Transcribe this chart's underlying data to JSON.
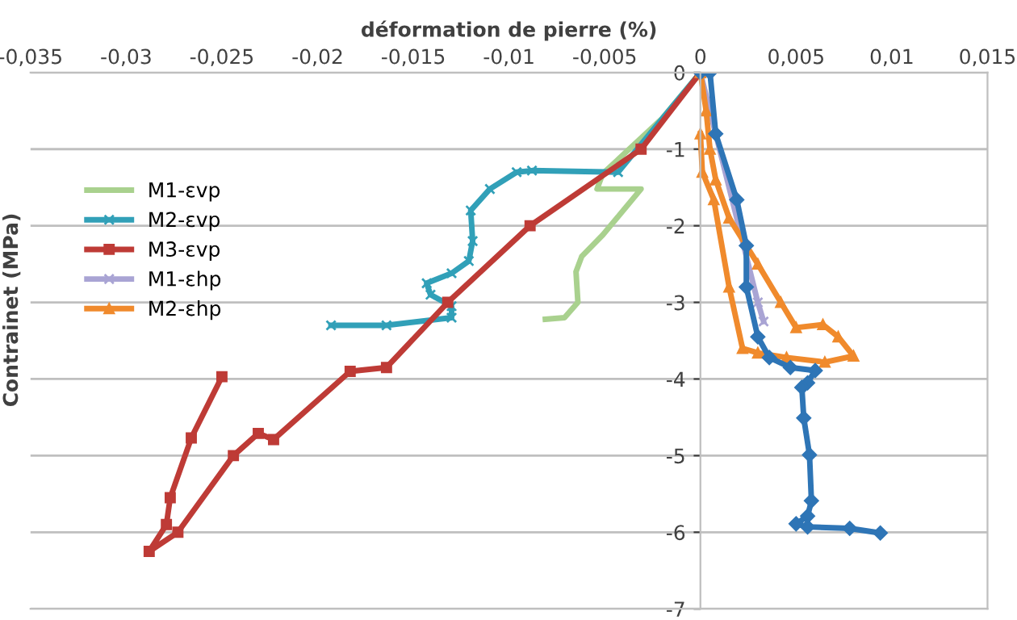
{
  "chart_data": {
    "type": "line",
    "xlabel": "déformation de pierre (%)",
    "ylabel": "Contrainet (MPa)",
    "xlim": [
      -0.035,
      0.015
    ],
    "ylim": [
      -7,
      0
    ],
    "xticks": [
      {
        "value": -0.035,
        "label": "-0,035"
      },
      {
        "value": -0.03,
        "label": "-0,03"
      },
      {
        "value": -0.025,
        "label": "-0,025"
      },
      {
        "value": -0.02,
        "label": "-0,02"
      },
      {
        "value": -0.015,
        "label": "-0,015"
      },
      {
        "value": -0.01,
        "label": "-0,01"
      },
      {
        "value": -0.005,
        "label": "-0,005"
      },
      0,
      {
        "value": 0.005,
        "label": "0,005"
      },
      {
        "value": 0.01,
        "label": "0,01"
      },
      {
        "value": 0.015,
        "label": "0,015"
      }
    ],
    "yticks": [
      -7,
      -6,
      -5,
      -4,
      -3,
      -2,
      -1,
      0
    ],
    "grid": "y",
    "legend": "left",
    "series": [
      {
        "name": "M1-εvp",
        "color": "#a9d18e",
        "marker": "none",
        "x": [
          0,
          -0.002,
          -0.0051,
          -0.0054,
          -0.0031,
          -0.0051,
          -0.0062,
          -0.0065,
          -0.0064,
          -0.0071,
          -0.0081
        ],
        "values": [
          0,
          -0.6,
          -1.32,
          -1.52,
          -1.52,
          -2.12,
          -2.4,
          -2.6,
          -3.0,
          -3.2,
          -3.22
        ]
      },
      {
        "name": "M2-εvp",
        "color": "#31a0b8",
        "marker": "cross",
        "x": [
          0,
          -0.0043,
          -0.0088,
          -0.0096,
          -0.011,
          -0.012,
          -0.0119,
          -0.0121,
          -0.013,
          -0.0143,
          -0.0141,
          -0.013,
          -0.013,
          -0.0164,
          -0.0193
        ],
        "values": [
          0,
          -1.3,
          -1.28,
          -1.3,
          -1.52,
          -1.8,
          -2.2,
          -2.46,
          -2.62,
          -2.75,
          -2.9,
          -3.05,
          -3.2,
          -3.3,
          -3.3
        ]
      },
      {
        "name": "M3-εvp",
        "color": "#be3b36",
        "marker": "square",
        "x": [
          0,
          -0.0031,
          -0.0089,
          -0.0132,
          -0.0164,
          -0.0183,
          -0.0223,
          -0.0231,
          -0.0244,
          -0.0273,
          -0.0288,
          -0.0279,
          -0.0277,
          -0.0266,
          -0.025
        ],
        "values": [
          0,
          -1.0,
          -2.0,
          -3.0,
          -3.85,
          -3.9,
          -4.79,
          -4.71,
          -5.0,
          -6.0,
          -6.25,
          -5.9,
          -5.55,
          -4.77,
          -3.97
        ]
      },
      {
        "name": "M1-εhp",
        "color": "#a9a4d4",
        "marker": "cross",
        "x": [
          0,
          0.0005,
          0.003,
          0.0033
        ],
        "values": [
          0,
          -0.5,
          -3.0,
          -3.25
        ]
      },
      {
        "name": "M2-εhp",
        "color": "#f08a2c",
        "marker": "triangle",
        "x": [
          0,
          0.0003,
          0.0005,
          0.0008,
          0.0015,
          0.003,
          0.0042,
          0.005,
          0.0064,
          0.0072,
          0.008,
          0.0065,
          0.0045,
          0.003,
          0.0022,
          0.0015,
          0.0007,
          0.0001,
          0.0
        ],
        "values": [
          0,
          -0.5,
          -1.0,
          -1.4,
          -1.9,
          -2.5,
          -3.0,
          -3.33,
          -3.29,
          -3.45,
          -3.7,
          -3.78,
          -3.72,
          -3.66,
          -3.6,
          -2.8,
          -1.66,
          -1.3,
          -0.8
        ]
      },
      {
        "color": "#2e75b6",
        "marker": "diamond",
        "x": [
          0,
          0.0005,
          0.0008,
          0.0019,
          0.0024,
          0.0024,
          0.003,
          0.0036,
          0.0047,
          0.006,
          0.0056,
          0.0053,
          0.0054,
          0.0057,
          0.0058,
          0.0056,
          0.005,
          0.0056,
          0.0078,
          0.0094
        ],
        "values": [
          0,
          0,
          -0.8,
          -1.66,
          -2.26,
          -2.8,
          -3.45,
          -3.72,
          -3.85,
          -3.89,
          -4.05,
          -4.11,
          -4.51,
          -4.99,
          -5.59,
          -5.79,
          -5.89,
          -5.93,
          -5.95,
          -6.01
        ]
      }
    ]
  }
}
